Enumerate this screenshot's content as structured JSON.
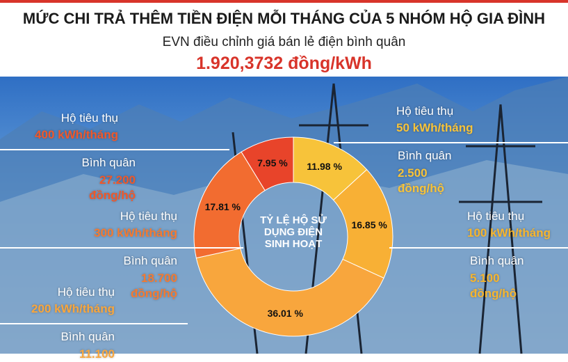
{
  "chart_data": {
    "type": "pie",
    "title": "MỨC CHI TRẢ THÊM TIỀN ĐIỆN MỖI THÁNG CỦA 5 NHÓM HỘ GIA ĐÌNH",
    "subtitle": "EVN điều chỉnh giá bán lẻ điện bình quân",
    "highlight": "1.920,3732 đồng/kWh",
    "center_label": "TỶ LỆ HỘ SỬ DỤNG ĐIỆN SINH HOẠT",
    "values": [
      11.98,
      16.85,
      36.01,
      17.81,
      7.95
    ],
    "value_labels": [
      "11.98 %",
      "16.85 %",
      "36.01 %",
      "17.81 %",
      "7.95 %"
    ],
    "colors": [
      "#f7c33a",
      "#f8b035",
      "#f8a63d",
      "#f26c30",
      "#e8442a"
    ],
    "annotations": [
      {
        "consumption_label": "Hộ tiêu thụ",
        "consumption": "50 kWh/tháng",
        "average_label": "Bình quân",
        "average": "2.500 đồng/hộ",
        "color": "#f7c33a"
      },
      {
        "consumption_label": "Hộ tiêu thụ",
        "consumption": "100 kWh/tháng",
        "average_label": "Bình quân",
        "average": "5.100 đồng/hộ",
        "color": "#f6b52e"
      },
      {
        "consumption_label": "Hộ tiêu thụ",
        "consumption": "200 kWh/tháng",
        "average_label": "Bình quân",
        "average": "11.100",
        "color": "#f8a63d"
      },
      {
        "consumption_label": "Hộ tiêu thụ",
        "consumption": "300 kWh/tháng",
        "average_label": "Bình quân",
        "average": "18.700 đồng/hộ",
        "color": "#f57a30"
      },
      {
        "consumption_label": "Hộ tiêu thụ",
        "consumption": "400 kWh/tháng",
        "average_label": "Bình quân",
        "average": "27.200 đồng/hộ",
        "color": "#f0582a"
      }
    ]
  }
}
